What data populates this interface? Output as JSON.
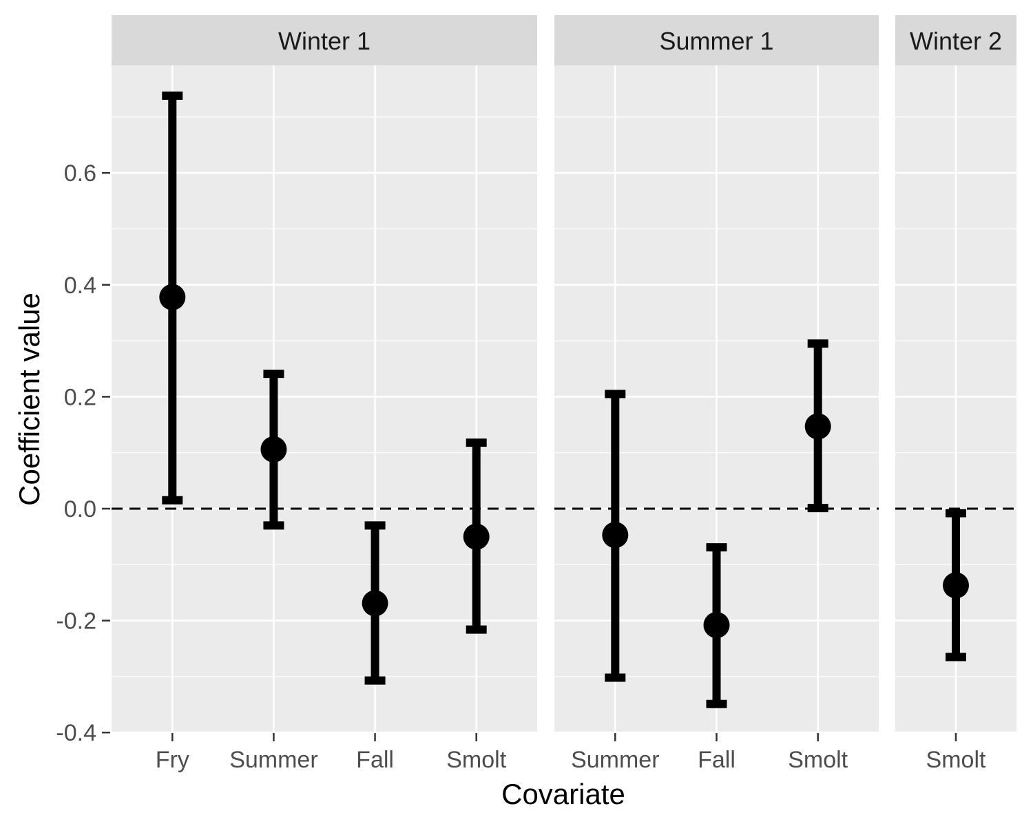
{
  "chart_data": {
    "type": "scatter",
    "subtype": "point-with-errorbars, faceted",
    "xlabel": "Covariate",
    "ylabel": "Coefficient value",
    "ylim": [
      -0.4,
      0.8
    ],
    "y_ticks": [
      -0.4,
      -0.2,
      0.0,
      0.2,
      0.4,
      0.6
    ],
    "y_tick_labels": [
      "-0.4",
      "-0.2",
      "0.0",
      "0.2",
      "0.4",
      "0.6"
    ],
    "reference_line": {
      "y": 0.0,
      "style": "dashed"
    },
    "grid": true,
    "legend": "none",
    "colors": {
      "panel_bg": "#ebebeb",
      "strip_bg": "#d9d9d9",
      "grid": "#ffffff",
      "marks": "#000000"
    },
    "facets": [
      {
        "name": "Winter 1",
        "categories": [
          "Fry",
          "Summer",
          "Fall",
          "Smolt"
        ],
        "estimates": [
          0.378,
          0.106,
          -0.169,
          -0.05
        ],
        "lower": [
          0.015,
          -0.03,
          -0.307,
          -0.216
        ],
        "upper": [
          0.738,
          0.241,
          -0.03,
          0.118
        ]
      },
      {
        "name": "Summer 1",
        "categories": [
          "Summer",
          "Fall",
          "Smolt"
        ],
        "estimates": [
          -0.047,
          -0.208,
          0.147
        ],
        "lower": [
          -0.302,
          -0.349,
          0.001
        ],
        "upper": [
          0.205,
          -0.069,
          0.295
        ]
      },
      {
        "name": "Winter 2",
        "categories": [
          "Smolt"
        ],
        "estimates": [
          -0.137
        ],
        "lower": [
          -0.265
        ],
        "upper": [
          -0.008
        ]
      }
    ]
  }
}
